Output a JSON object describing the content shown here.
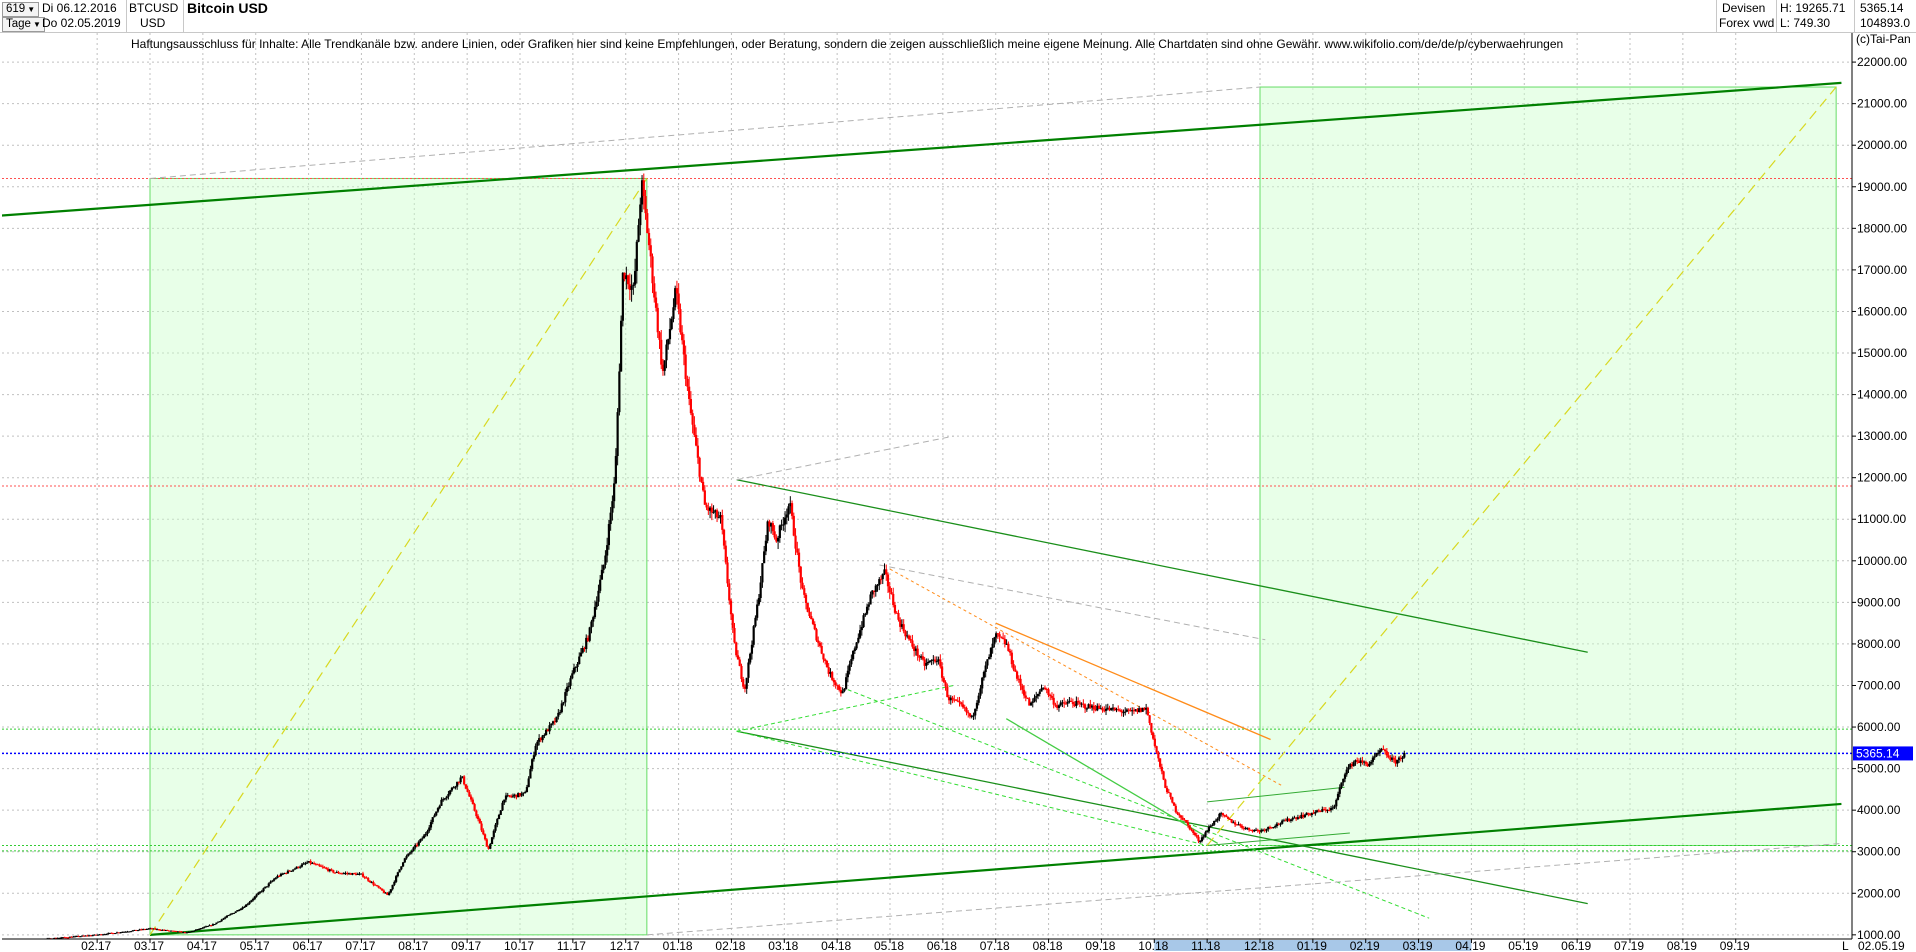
{
  "header": {
    "period_select": "619",
    "range_start": "Di 06.12.2016",
    "interval_select": "Tage",
    "range_end": "Do 02.05.2019",
    "symbol": "BTCUSD",
    "currency": "USD",
    "title": "Bitcoin USD",
    "category": "Devisen",
    "source": "Forex vwd",
    "high_label": "H: 19265.71",
    "low_label": "L: 749.30",
    "last_value": "5365.14",
    "volume_value": "104893.0"
  },
  "disclaimer": "Haftungsausschluss für Inhalte: Alle Trendkanäle bzw. andere Linien, oder Grafiken hier sind keine Empfehlungen, oder Beratung, sondern die zeigen ausschließlich meine eigene Meinung. Alle Chartdaten sind ohne Gewähr.  www.wikifolio.com/de/de/p/cyberwaehrungen",
  "copyright": "(c)Tai-Pan",
  "current_price_tag": "5365.14",
  "x_end_label": "L",
  "x_end_date": "02.05.19",
  "colors": {
    "up_candle": "#000000",
    "down_candle": "#ff0000",
    "channel": "#008000",
    "box_fill": "#ccffcc",
    "current_price": "#0000ff",
    "price_tag_bg": "#0000ff"
  },
  "chart_data": {
    "type": "candlestick",
    "title": "Bitcoin USD",
    "ylim": [
      900,
      22700
    ],
    "y_ticks": [
      1000,
      2000,
      3000,
      4000,
      5000,
      6000,
      7000,
      8000,
      9000,
      10000,
      11000,
      12000,
      13000,
      14000,
      15000,
      16000,
      17000,
      18000,
      19000,
      20000,
      21000,
      22000
    ],
    "y_tick_labels": [
      "1000.00",
      "2000.00",
      "3000.00",
      "4000.00",
      "5000.00",
      "6000.00",
      "7000.00",
      "8000.00",
      "9000.00",
      "10000.00",
      "11000.00",
      "12000.00",
      "13000.00",
      "14000.00",
      "15000.00",
      "16000.00",
      "17000.00",
      "18000.00",
      "19000.00",
      "20000.00",
      "21000.00",
      "22000.00"
    ],
    "x_tick_labels": [
      "02.17",
      "03.17",
      "04.17",
      "05.17",
      "06.17",
      "07.17",
      "08.17",
      "09.17",
      "10.17",
      "11.17",
      "12.17",
      "01.18",
      "02.18",
      "03.18",
      "04.18",
      "05.18",
      "06.18",
      "07.18",
      "08.18",
      "09.18",
      "10.18",
      "11.18",
      "12.18",
      "01.19",
      "02.19",
      "03.19",
      "04.19",
      "05.19",
      "06.19",
      "07.19",
      "08.19",
      "09.19"
    ],
    "x_tick_index": [
      2,
      3,
      4,
      5,
      6,
      7,
      8,
      9,
      10,
      11,
      12,
      13,
      14,
      15,
      16,
      17,
      18,
      19,
      20,
      21,
      22,
      23,
      24,
      25,
      26,
      27,
      28,
      29,
      30,
      31,
      32,
      33
    ],
    "x_range_months": [
      0.2,
      35.2
    ],
    "highlighted_x_months": [
      22,
      28
    ],
    "price_path": [
      [
        0.0,
        760
      ],
      [
        1.0,
        900
      ],
      [
        2.0,
        1000
      ],
      [
        3.0,
        1150
      ],
      [
        3.7,
        1050
      ],
      [
        4.2,
        1250
      ],
      [
        4.8,
        1700
      ],
      [
        5.4,
        2400
      ],
      [
        6.0,
        2750
      ],
      [
        6.5,
        2500
      ],
      [
        7.0,
        2450
      ],
      [
        7.5,
        1950
      ],
      [
        7.8,
        2800
      ],
      [
        8.2,
        3400
      ],
      [
        8.5,
        4200
      ],
      [
        8.9,
        4800
      ],
      [
        9.2,
        3800
      ],
      [
        9.4,
        3050
      ],
      [
        9.7,
        4300
      ],
      [
        10.1,
        4400
      ],
      [
        10.3,
        5600
      ],
      [
        10.7,
        6200
      ],
      [
        11.0,
        7300
      ],
      [
        11.3,
        8200
      ],
      [
        11.6,
        10000
      ],
      [
        11.8,
        12000
      ],
      [
        11.95,
        17000
      ],
      [
        12.15,
        16500
      ],
      [
        12.3,
        19100
      ],
      [
        12.45,
        17500
      ],
      [
        12.7,
        14500
      ],
      [
        12.95,
        16500
      ],
      [
        13.2,
        13800
      ],
      [
        13.5,
        11300
      ],
      [
        13.8,
        11000
      ],
      [
        14.05,
        8000
      ],
      [
        14.25,
        6900
      ],
      [
        14.5,
        9000
      ],
      [
        14.7,
        11000
      ],
      [
        14.85,
        10500
      ],
      [
        15.1,
        11400
      ],
      [
        15.35,
        9200
      ],
      [
        15.6,
        8200
      ],
      [
        15.85,
        7300
      ],
      [
        16.1,
        6800
      ],
      [
        16.35,
        8000
      ],
      [
        16.65,
        9200
      ],
      [
        16.9,
        9700
      ],
      [
        17.15,
        8600
      ],
      [
        17.4,
        8000
      ],
      [
        17.65,
        7500
      ],
      [
        17.9,
        7650
      ],
      [
        18.1,
        6700
      ],
      [
        18.35,
        6500
      ],
      [
        18.55,
        6200
      ],
      [
        18.8,
        7400
      ],
      [
        19.0,
        8200
      ],
      [
        19.2,
        8000
      ],
      [
        19.4,
        7200
      ],
      [
        19.65,
        6500
      ],
      [
        19.9,
        7000
      ],
      [
        20.15,
        6500
      ],
      [
        20.4,
        6600
      ],
      [
        20.7,
        6500
      ],
      [
        21.0,
        6450
      ],
      [
        21.3,
        6400
      ],
      [
        21.55,
        6350
      ],
      [
        21.85,
        6450
      ],
      [
        22.0,
        5600
      ],
      [
        22.2,
        4600
      ],
      [
        22.4,
        4000
      ],
      [
        22.6,
        3700
      ],
      [
        22.85,
        3250
      ],
      [
        23.05,
        3600
      ],
      [
        23.25,
        3900
      ],
      [
        23.5,
        3700
      ],
      [
        23.75,
        3550
      ],
      [
        24.0,
        3500
      ],
      [
        24.3,
        3650
      ],
      [
        24.6,
        3800
      ],
      [
        24.9,
        3900
      ],
      [
        25.2,
        4000
      ],
      [
        25.4,
        4050
      ],
      [
        25.6,
        4900
      ],
      [
        25.8,
        5200
      ],
      [
        26.05,
        5100
      ],
      [
        26.3,
        5450
      ],
      [
        26.55,
        5150
      ],
      [
        26.75,
        5365
      ]
    ],
    "trendlines": [
      {
        "from": [
          0.1,
          18300
        ],
        "to": [
          35.0,
          21500
        ],
        "style": "channel-bold"
      },
      {
        "from": [
          3.0,
          1000
        ],
        "to": [
          35.0,
          4150
        ],
        "style": "channel-bold"
      },
      {
        "from": [
          14.1,
          11950
        ],
        "to": [
          30.2,
          7800
        ],
        "style": "channel"
      },
      {
        "from": [
          14.1,
          5900
        ],
        "to": [
          30.2,
          1750
        ],
        "style": "channel"
      },
      {
        "from": [
          17.0,
          9800
        ],
        "to": [
          24.4,
          4600
        ],
        "style": "orange-dashed"
      },
      {
        "from": [
          19.0,
          8500
        ],
        "to": [
          24.2,
          5700
        ],
        "style": "orange"
      },
      {
        "from": [
          14.1,
          5900
        ],
        "to": [
          23.0,
          3150
        ],
        "style": "green-dashed"
      },
      {
        "from": [
          14.1,
          5900
        ],
        "to": [
          18.2,
          7000
        ],
        "style": "green-dashed"
      },
      {
        "from": [
          16.2,
          6900
        ],
        "to": [
          27.2,
          1400
        ],
        "style": "green-dashed"
      },
      {
        "from": [
          19.2,
          6200
        ],
        "to": [
          23.2,
          3200
        ],
        "style": "green-light"
      },
      {
        "from": [
          23.0,
          4200
        ],
        "to": [
          25.6,
          4550
        ],
        "style": "green-thin"
      },
      {
        "from": [
          23.0,
          3150
        ],
        "to": [
          25.7,
          3450
        ],
        "style": "green-thin"
      },
      {
        "from": [
          3.0,
          1000
        ],
        "to": [
          12.4,
          19200
        ],
        "style": "yellow-dashed"
      },
      {
        "from": [
          23.0,
          3150
        ],
        "to": [
          34.9,
          21400
        ],
        "style": "yellow-dashed"
      },
      {
        "from": [
          3.0,
          19200
        ],
        "to": [
          24.0,
          21400
        ],
        "style": "gray-dashed"
      },
      {
        "from": [
          12.4,
          1000
        ],
        "to": [
          35.0,
          3200
        ],
        "style": "gray-dashed"
      },
      {
        "from": [
          14.1,
          11950
        ],
        "to": [
          18.2,
          13000
        ],
        "style": "gray-dashed"
      },
      {
        "from": [
          16.8,
          9900
        ],
        "to": [
          24.1,
          8100
        ],
        "style": "gray-dashed"
      }
    ],
    "horizontal_levels": [
      {
        "value": 19200,
        "style": "red-dotted"
      },
      {
        "value": 11800,
        "style": "red-dotted"
      },
      {
        "value": 5950,
        "style": "green-dotted"
      },
      {
        "value": 3150,
        "style": "green-dotted"
      },
      {
        "value": 3020,
        "style": "green-dotted"
      },
      {
        "value": 5365.14,
        "style": "current-price"
      }
    ],
    "boxes": [
      {
        "x": [
          3.0,
          12.4
        ],
        "y": [
          1000,
          19200
        ]
      },
      {
        "x": [
          24.0,
          34.9
        ],
        "y": [
          3150,
          21400
        ]
      }
    ]
  }
}
